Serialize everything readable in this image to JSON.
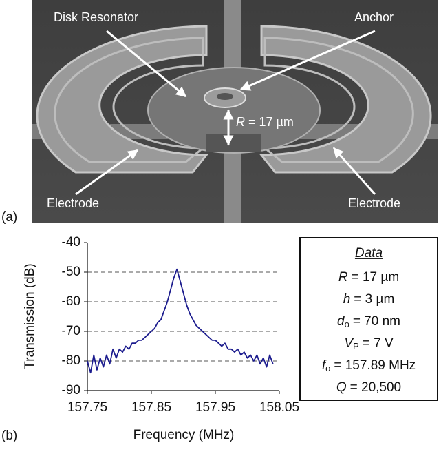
{
  "figure": {
    "panel_a": {
      "label": "(a)",
      "annotations": {
        "disk": "Disk Resonator",
        "anchor": "Anchor",
        "radius_symbol": "R",
        "radius_text": "= 17 µm",
        "electrode_left": "Electrode",
        "electrode_right": "Electrode"
      }
    },
    "panel_b": {
      "label": "(b)"
    },
    "data_box": {
      "title": "Data",
      "lines": [
        {
          "symbol": "R",
          "text": "= 17 µm"
        },
        {
          "symbol": "h",
          "text": "= 3 µm"
        },
        {
          "symbol": "d",
          "subscript": "o",
          "text": "= 70 nm"
        },
        {
          "symbol": "V",
          "subscript": "P",
          "text": "= 7 V"
        },
        {
          "symbol": "f",
          "subscript": "o",
          "text": "= 157.89 MHz"
        },
        {
          "symbol": "Q",
          "text": "= 20,500"
        }
      ]
    }
  },
  "chart_data": {
    "type": "line",
    "xlabel": "Frequency (MHz)",
    "ylabel": "Transmission (dB)",
    "x": [
      157.75,
      157.755,
      157.76,
      157.765,
      157.77,
      157.775,
      157.78,
      157.785,
      157.79,
      157.795,
      157.8,
      157.805,
      157.81,
      157.815,
      157.82,
      157.825,
      157.83,
      157.835,
      157.84,
      157.845,
      157.85,
      157.855,
      157.86,
      157.865,
      157.87,
      157.875,
      157.88,
      157.885,
      157.89,
      157.895,
      157.9,
      157.905,
      157.91,
      157.915,
      157.92,
      157.925,
      157.93,
      157.935,
      157.94,
      157.945,
      157.95,
      157.955,
      157.96,
      157.965,
      157.97,
      157.975,
      157.98,
      157.985,
      157.99,
      157.995,
      158.0,
      158.005,
      158.01,
      158.015,
      158.02,
      158.025,
      158.03,
      158.035,
      158.04
    ],
    "values": [
      -80,
      -84,
      -78,
      -83,
      -79,
      -82,
      -78,
      -81,
      -76,
      -79,
      -76,
      -77,
      -75,
      -76,
      -74,
      -74,
      -73,
      -73,
      -72,
      -71,
      -70,
      -69,
      -67,
      -66,
      -63,
      -60,
      -56,
      -52,
      -49,
      -53,
      -57,
      -61,
      -64,
      -66,
      -68,
      -69,
      -70,
      -71,
      -72,
      -73,
      -73,
      -74,
      -75,
      -74,
      -76,
      -76,
      -77,
      -76,
      -78,
      -77,
      -79,
      -78,
      -80,
      -78,
      -81,
      -79,
      -82,
      -78,
      -81
    ],
    "color": "#1c1c8e",
    "xlim": [
      157.75,
      158.05
    ],
    "ylim": [
      -90,
      -40
    ],
    "xticks": [
      157.75,
      157.85,
      157.95,
      158.05
    ],
    "yticks": [
      -90,
      -80,
      -70,
      -60,
      -50,
      -40
    ],
    "grid": true
  }
}
